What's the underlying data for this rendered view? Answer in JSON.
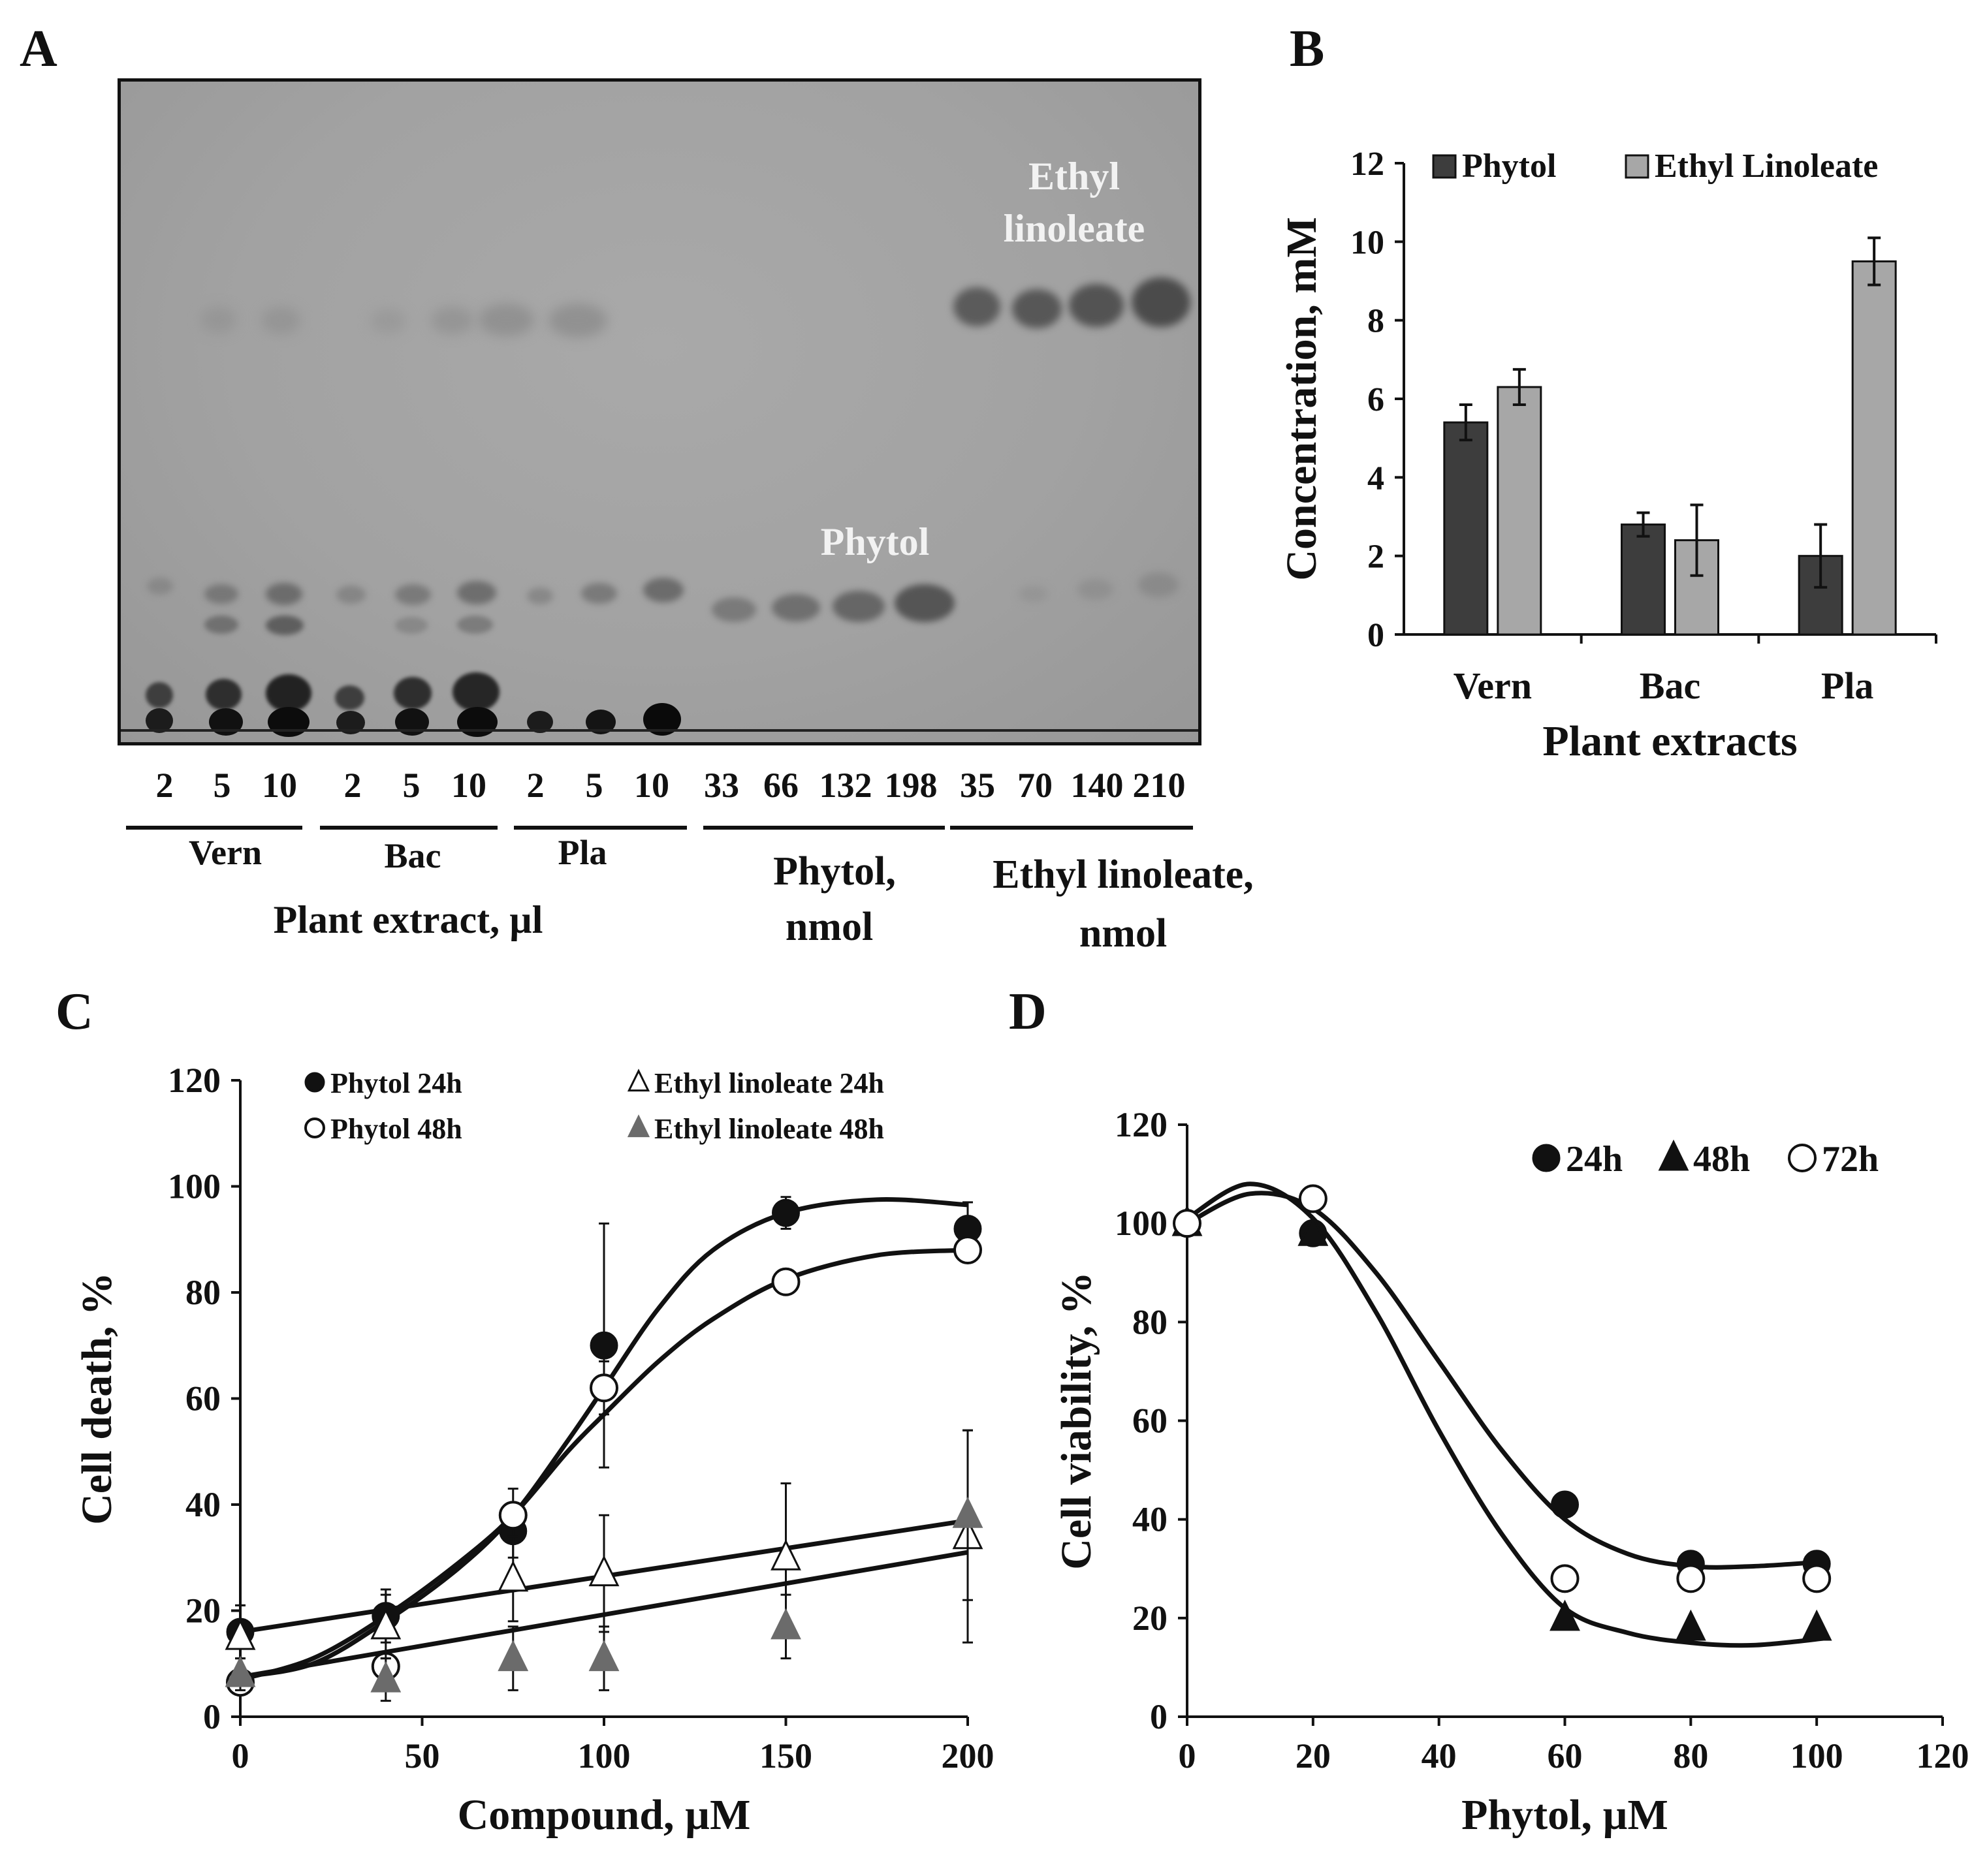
{
  "panel_A": {
    "letter": "A",
    "lane_amounts": [
      "2",
      "5",
      "10",
      "2",
      "5",
      "10",
      "2",
      "5",
      "10",
      "33",
      "66",
      "132",
      "198",
      "35",
      "70",
      "140",
      "210"
    ],
    "groups": {
      "vern": "Vern",
      "bac": "Bac",
      "pla": "Pla",
      "phytol_l1": "Phytol,",
      "phytol_l2": "nmol",
      "ethyl_l1": "Ethyl linoleate,",
      "ethyl_l2": "nmol"
    },
    "extract_caption": "Plant  extract, µl",
    "band_label_phytol": "Phytol",
    "band_label_ethyl_l1": "Ethyl",
    "band_label_ethyl_l2": "linoleate"
  },
  "chart_data": [
    {
      "panel": "B",
      "type": "bar",
      "categories": [
        "Vern",
        "Bac",
        "Pla"
      ],
      "series": [
        {
          "name": "Phytol",
          "color": "#3d3d3d",
          "values": [
            5.4,
            2.8,
            2.0
          ],
          "errors": [
            0.45,
            0.3,
            0.8
          ]
        },
        {
          "name": "Ethyl Linoleate",
          "color": "#a7a7a7",
          "values": [
            6.3,
            2.4,
            9.5
          ],
          "errors": [
            0.45,
            0.9,
            0.6
          ]
        }
      ],
      "title": "",
      "xlabel": "Plant extracts",
      "ylabel": "Concentration, mM",
      "ylim": [
        0,
        12
      ],
      "yticks": [
        "0",
        "2",
        "4",
        "6",
        "8",
        "10",
        "12"
      ],
      "legend_position": "top"
    },
    {
      "panel": "C",
      "type": "scatter",
      "xlabel": "Compound, µM",
      "ylabel": "Cell death, %",
      "xlim": [
        0,
        200
      ],
      "ylim": [
        0,
        120
      ],
      "xticks": [
        "0",
        "50",
        "100",
        "150",
        "200"
      ],
      "yticks": [
        "0",
        "20",
        "40",
        "60",
        "80",
        "100",
        "120"
      ],
      "legend_position": "top",
      "series": [
        {
          "name": "Phytol 24h",
          "marker": "filled-circle",
          "x": [
            0,
            40,
            75,
            100,
            150,
            200
          ],
          "y": [
            16,
            19,
            35,
            70,
            95,
            92
          ],
          "errors": [
            5,
            5,
            5,
            23,
            3,
            5
          ]
        },
        {
          "name": "Phytol 48h",
          "marker": "open-circle",
          "x": [
            0,
            40,
            75,
            100,
            150,
            200
          ],
          "y": [
            6.5,
            9.5,
            38,
            62,
            82,
            88
          ],
          "errors": [
            2,
            2,
            5,
            5,
            2,
            2
          ]
        },
        {
          "name": "Ethyl linoleate 24h",
          "marker": "open-triangle",
          "x": [
            0,
            40,
            75,
            100,
            150,
            200
          ],
          "y": [
            15,
            17,
            26,
            27,
            30,
            34
          ],
          "errors": [
            6,
            6,
            8,
            11,
            14,
            20
          ]
        },
        {
          "name": "Ethyl linoleate 48h",
          "marker": "filled-gray-triangle",
          "x": [
            0,
            40,
            75,
            100,
            150,
            200
          ],
          "y": [
            8,
            7,
            11,
            11,
            17,
            38
          ],
          "errors": [
            3,
            4,
            6,
            6,
            6,
            16
          ]
        }
      ],
      "fit_curves": [
        {
          "for": "Phytol 24h",
          "kind": "sigmoid",
          "points": [
            [
              0,
              7.5
            ],
            [
              20,
              10
            ],
            [
              40,
              18
            ],
            [
              60,
              28
            ],
            [
              75,
              38
            ],
            [
              90,
              52
            ],
            [
              100,
              62
            ],
            [
              115,
              77
            ],
            [
              130,
              88
            ],
            [
              150,
              95
            ],
            [
              175,
              97.5
            ],
            [
              200,
              96.5
            ]
          ]
        },
        {
          "for": "Phytol 48h",
          "kind": "sigmoid",
          "points": [
            [
              0,
              7
            ],
            [
              20,
              11
            ],
            [
              40,
              19
            ],
            [
              60,
              29
            ],
            [
              75,
              38
            ],
            [
              90,
              50
            ],
            [
              100,
              57
            ],
            [
              115,
              67
            ],
            [
              130,
              75
            ],
            [
              150,
              82.5
            ],
            [
              175,
              87
            ],
            [
              200,
              88
            ]
          ]
        },
        {
          "for": "Ethyl linoleate 24h",
          "kind": "linear",
          "points": [
            [
              0,
              16
            ],
            [
              200,
              37
            ]
          ]
        },
        {
          "for": "Ethyl linoleate 48h",
          "kind": "linear",
          "points": [
            [
              0,
              7.5
            ],
            [
              200,
              31
            ]
          ]
        }
      ]
    },
    {
      "panel": "D",
      "type": "scatter",
      "xlabel": "Phytol, µM",
      "ylabel": "Cell viability, %",
      "xlim": [
        0,
        120
      ],
      "ylim": [
        0,
        120
      ],
      "xticks": [
        "0",
        "20",
        "40",
        "60",
        "80",
        "100",
        "120"
      ],
      "yticks": [
        "0",
        "20",
        "40",
        "60",
        "80",
        "100",
        "120"
      ],
      "legend_position": "top-right",
      "series": [
        {
          "name": "24h",
          "marker": "filled-circle",
          "x": [
            0,
            20,
            60,
            80,
            100
          ],
          "y": [
            100,
            98,
            43,
            31,
            31
          ]
        },
        {
          "name": "48h",
          "marker": "filled-triangle",
          "x": [
            0,
            20,
            60,
            80,
            100
          ],
          "y": [
            100,
            98,
            20,
            18,
            18
          ]
        },
        {
          "name": "72h",
          "marker": "open-circle",
          "x": [
            0,
            20,
            60,
            80,
            100
          ],
          "y": [
            100,
            105,
            28,
            28,
            28
          ]
        }
      ],
      "fit_curves": [
        {
          "kind": "sigmoid",
          "points": [
            [
              0,
              100
            ],
            [
              10,
              106
            ],
            [
              20,
              103
            ],
            [
              30,
              90
            ],
            [
              40,
              72
            ],
            [
              50,
              54
            ],
            [
              60,
              40
            ],
            [
              70,
              33
            ],
            [
              80,
              30.5
            ],
            [
              90,
              30.5
            ],
            [
              102,
              31.5
            ]
          ]
        },
        {
          "kind": "sigmoid",
          "points": [
            [
              0,
              101
            ],
            [
              10,
              108
            ],
            [
              20,
              101
            ],
            [
              30,
              82
            ],
            [
              40,
              58
            ],
            [
              50,
              37
            ],
            [
              60,
              22
            ],
            [
              70,
              17
            ],
            [
              80,
              15
            ],
            [
              90,
              14.5
            ],
            [
              102,
              16
            ]
          ]
        }
      ]
    }
  ]
}
